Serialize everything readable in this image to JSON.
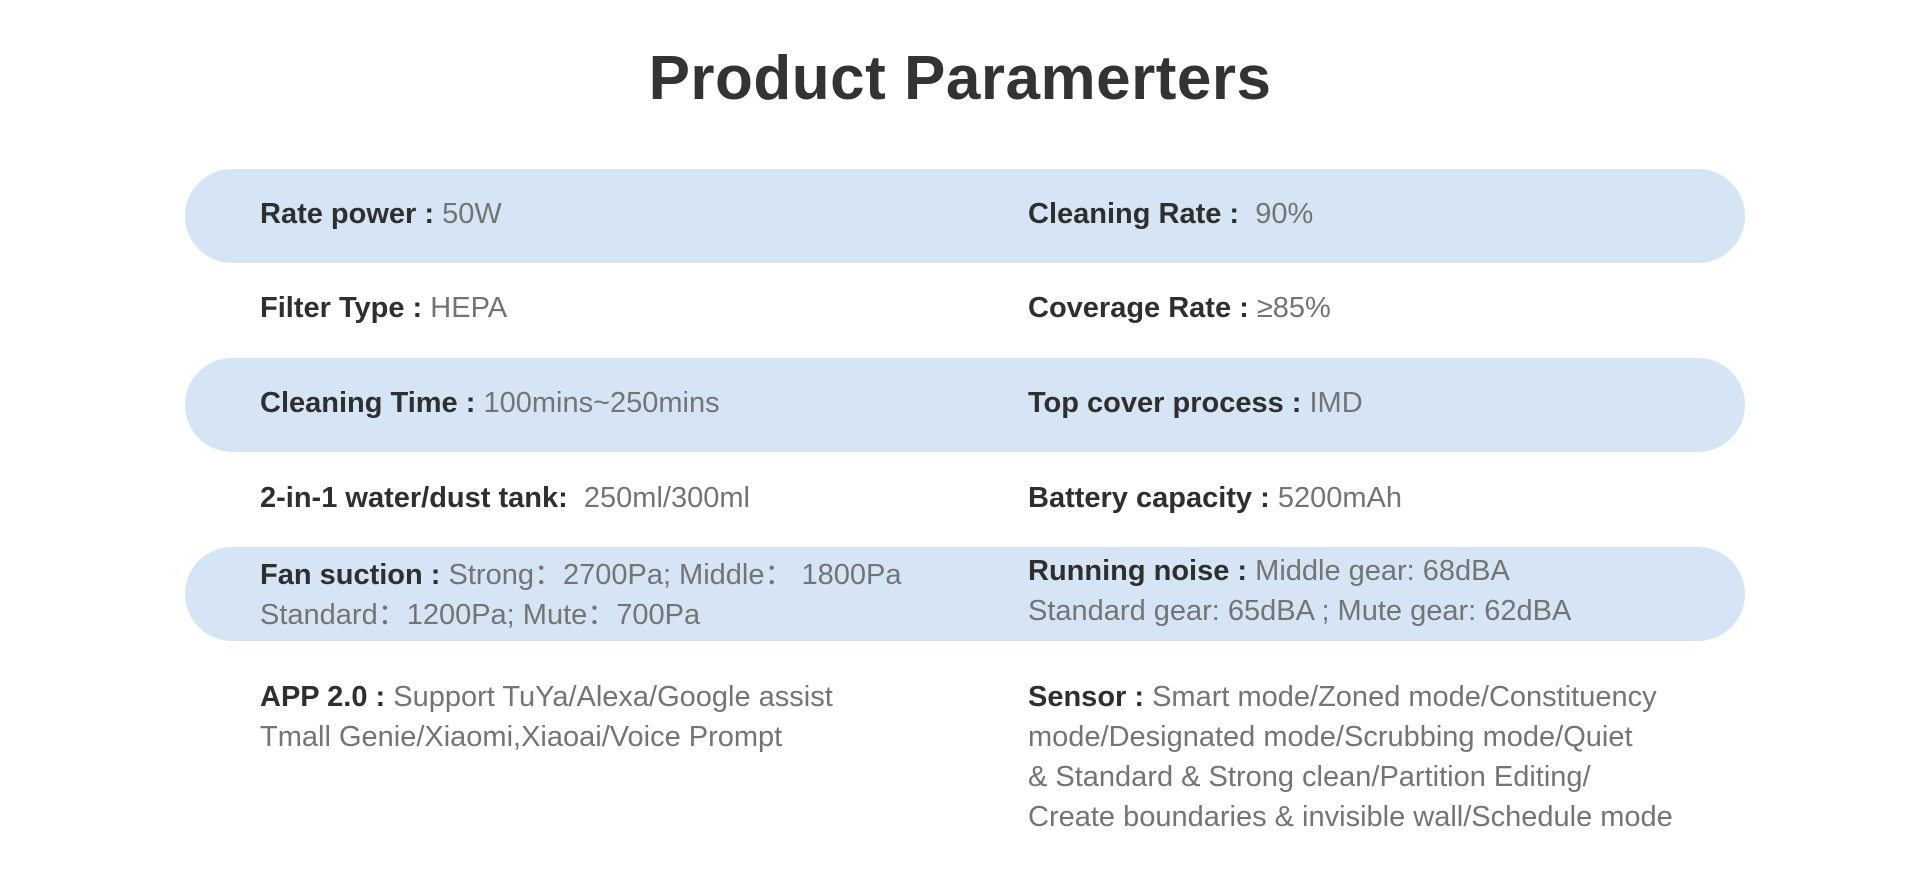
{
  "title": "Product Paramerters",
  "rows": [
    {
      "left": {
        "label": "Rate power :",
        "value": "50W"
      },
      "right": {
        "label": "Cleaning Rate :",
        "value": "90%"
      }
    },
    {
      "left": {
        "label": "Filter Type :",
        "value": "HEPA"
      },
      "right": {
        "label": "Coverage Rate :",
        "value": "≥85%"
      }
    },
    {
      "left": {
        "label": "Cleaning Time :",
        "value": "100mins~250mins"
      },
      "right": {
        "label": "Top cover process :",
        "value": "IMD"
      }
    },
    {
      "left": {
        "label": "2-in-1 water/dust tank:",
        "value": "250ml/300ml"
      },
      "right": {
        "label": "Battery capacity :",
        "value": "5200mAh"
      }
    },
    {
      "left": {
        "label": "Fan suction :",
        "line1": "Strong：2700Pa;  Middle：  1800Pa",
        "line2": "Standard：1200Pa;   Mute：700Pa"
      },
      "right": {
        "label": "Running noise :",
        "line1": "Middle gear: 68dBA",
        "line2": "Standard  gear: 65dBA ;   Mute gear:  62dBA"
      }
    },
    {
      "left": {
        "label": "APP 2.0 :",
        "line1": "Support TuYa/Alexa/Google assist",
        "line2": "Tmall Genie/Xiaomi,Xiaoai/Voice Prompt"
      },
      "right": {
        "label": "Sensor :",
        "line1": "Smart mode/Zoned mode/Constituency",
        "line2": "mode/Designated mode/Scrubbing mode/Quiet",
        "line3": "& Standard & Strong clean/Partition Editing/",
        "line4": "Create boundaries & invisible wall/Schedule mode"
      }
    }
  ]
}
